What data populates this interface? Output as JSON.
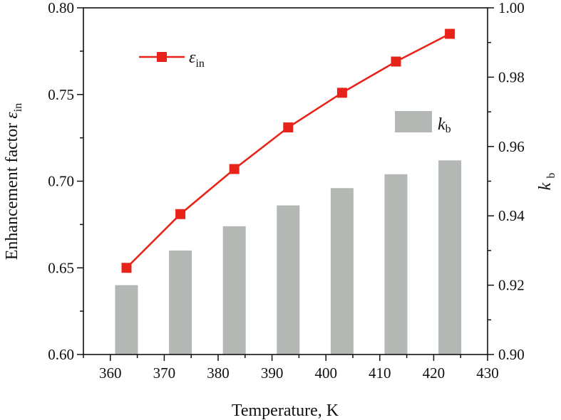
{
  "chart_data": {
    "type": "bar+line",
    "x": [
      363,
      373,
      383,
      393,
      403,
      413,
      423
    ],
    "series": [
      {
        "name": "εin",
        "type": "line",
        "axis": "left",
        "color": "#e8231a",
        "marker": "square",
        "values": [
          0.65,
          0.681,
          0.707,
          0.731,
          0.751,
          0.769,
          0.785
        ]
      },
      {
        "name": "kb",
        "type": "bar",
        "axis": "right",
        "color": "#b4b8b5",
        "values": [
          0.92,
          0.93,
          0.937,
          0.943,
          0.948,
          0.952,
          0.956
        ]
      }
    ],
    "xlabel": "Temperature, K",
    "ylabel_left": "Enhancement factor εin",
    "ylabel_right": "kb",
    "xlim": [
      355,
      430
    ],
    "ylim_left": [
      0.6,
      0.8
    ],
    "ylim_right": [
      0.9,
      1.0
    ],
    "xticks": [
      "360",
      "370",
      "380",
      "390",
      "400",
      "410",
      "420",
      "430"
    ],
    "yticks_left": [
      "0.60",
      "0.65",
      "0.70",
      "0.75",
      "0.80"
    ],
    "yticks_right": [
      "0.90",
      "0.92",
      "0.94",
      "0.96",
      "0.98",
      "1.00"
    ],
    "grid": false,
    "legend": [
      {
        "symbol": "ε",
        "sub": "in",
        "placement": "top-left"
      },
      {
        "symbol": "k",
        "sub": "b",
        "placement": "upper-right"
      }
    ]
  }
}
